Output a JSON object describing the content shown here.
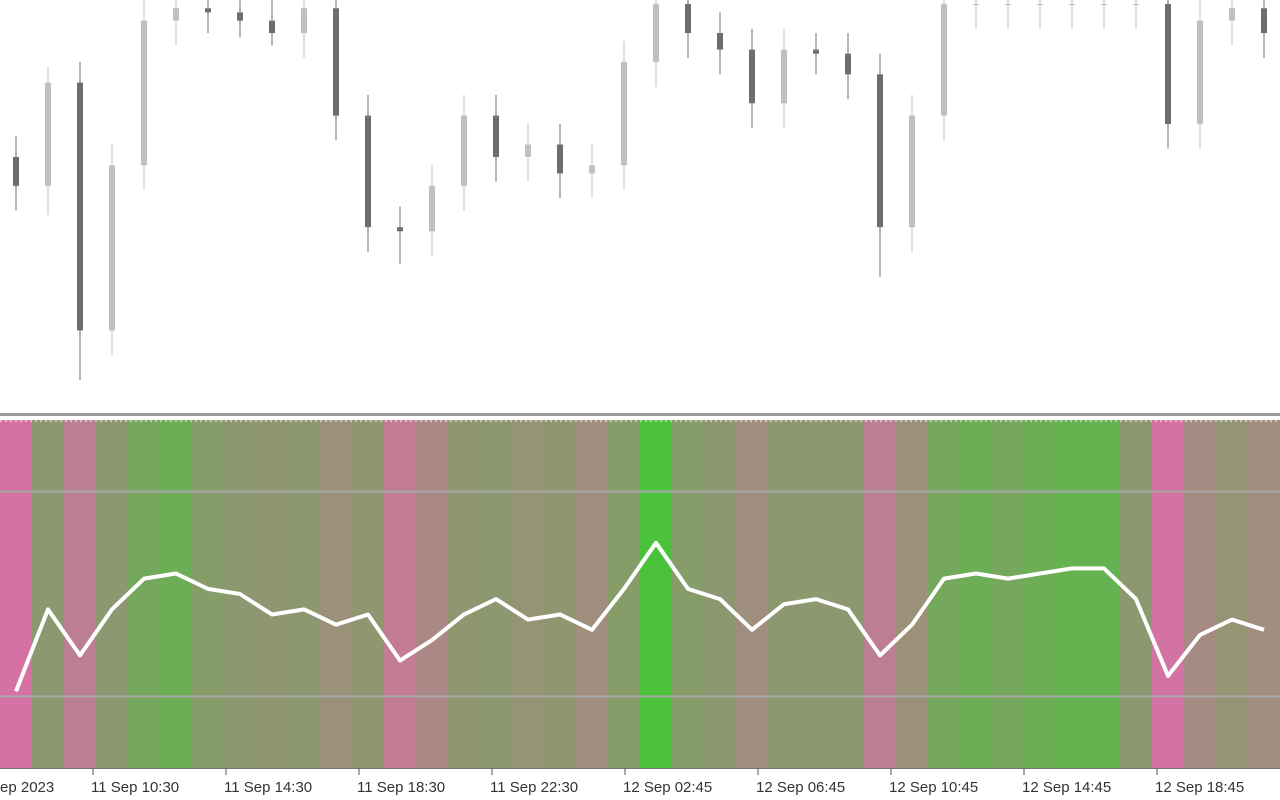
{
  "chart_data": [
    {
      "type": "candlestick",
      "open": [
        62,
        55,
        80,
        20,
        60,
        95,
        98,
        97,
        95,
        92,
        98,
        72,
        45,
        44,
        55,
        72,
        62,
        65,
        58,
        60,
        85,
        99,
        92,
        88,
        75,
        88,
        87,
        82,
        45,
        72,
        99,
        99,
        99,
        99,
        99,
        99,
        99,
        70,
        95,
        98
      ],
      "high": [
        67,
        84,
        85,
        65,
        100,
        103,
        103,
        102,
        100,
        103,
        103,
        77,
        50,
        60,
        77,
        77,
        70,
        70,
        65,
        90,
        104,
        104,
        97,
        93,
        93,
        92,
        92,
        87,
        77,
        104,
        104,
        104,
        104,
        104,
        104,
        104,
        104,
        100,
        103,
        103
      ],
      "low": [
        49,
        48,
        8,
        14,
        54,
        89,
        92,
        91,
        89,
        86,
        66,
        39,
        36,
        38,
        49,
        56,
        56,
        52,
        52,
        54,
        79,
        86,
        82,
        69,
        69,
        82,
        76,
        33,
        39,
        66,
        93,
        93,
        93,
        93,
        93,
        93,
        64,
        64,
        89,
        86
      ],
      "close": [
        55,
        80,
        20,
        60,
        95,
        98,
        97,
        95,
        92,
        98,
        72,
        45,
        44,
        55,
        72,
        62,
        65,
        58,
        60,
        85,
        99,
        92,
        88,
        75,
        88,
        87,
        82,
        45,
        72,
        99,
        99,
        99,
        99,
        99,
        99,
        99,
        70,
        95,
        98,
        92
      ],
      "up_color": "#c0c0c0",
      "down_color": "#6e6e6e",
      "ylim": [
        0,
        100
      ]
    },
    {
      "type": "line",
      "values": [
        31,
        47,
        38,
        47,
        53,
        54,
        51,
        50,
        46,
        47,
        44,
        46,
        37,
        41,
        46,
        49,
        45,
        46,
        43,
        51,
        60,
        51,
        49,
        43,
        48,
        49,
        47,
        38,
        44,
        53,
        54,
        53,
        54,
        55,
        55,
        49,
        34,
        42,
        45,
        43
      ],
      "color": "#ffffff",
      "low_color": "#d472a4",
      "mid_color": "#8e9870",
      "high_color": "#4cc23c",
      "levels": [
        30,
        70
      ],
      "ylim": [
        16,
        84
      ],
      "xlabels": [
        "ep 2023",
        "11 Sep 10:30",
        "11 Sep 14:30",
        "11 Sep 18:30",
        "11 Sep 22:30",
        "12 Sep 02:45",
        "12 Sep 06:45",
        "12 Sep 10:45",
        "12 Sep 14:45",
        "12 Sep 18:45"
      ]
    }
  ]
}
